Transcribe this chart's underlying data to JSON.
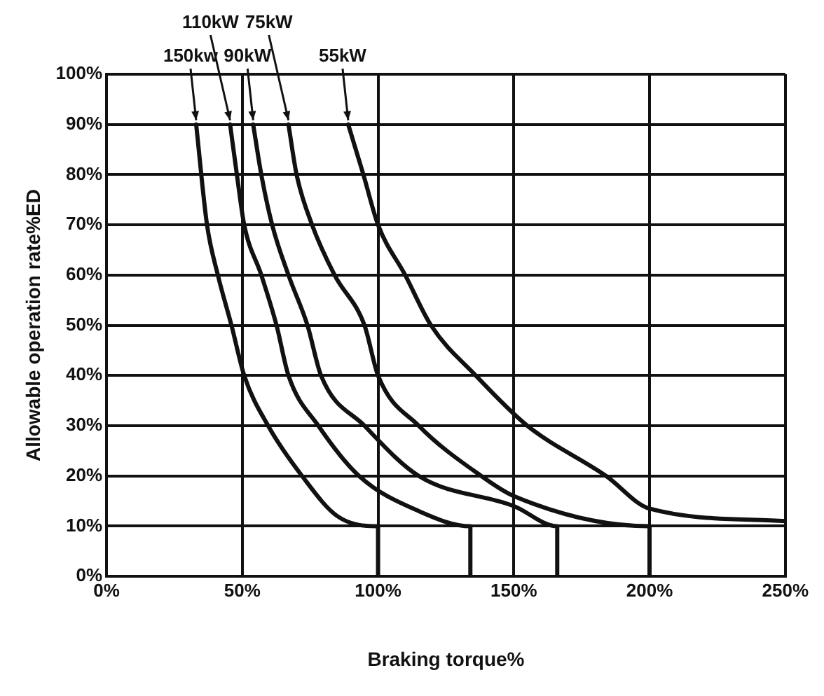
{
  "chart_data": {
    "type": "line",
    "xlabel": "Braking torque%",
    "ylabel": "Allowable operation rate%ED",
    "series": [
      {
        "name": "150kw",
        "color": "#111111",
        "x": [
          33,
          37,
          41,
          46,
          50.7,
          59.5,
          72,
          85,
          100,
          100
        ],
        "values": [
          90,
          70,
          60,
          50,
          40,
          30,
          20,
          12,
          10,
          0
        ]
      },
      {
        "name": "110kW",
        "color": "#111111",
        "x": [
          45.5,
          48,
          50.7,
          57,
          62.6,
          67,
          78,
          93,
          115,
          134,
          134
        ],
        "values": [
          90,
          80,
          70,
          60,
          50,
          40,
          30,
          20,
          13,
          10,
          0
        ]
      },
      {
        "name": "90kW",
        "color": "#111111",
        "x": [
          54,
          57,
          61,
          67,
          74,
          79,
          95,
          115,
          150,
          166,
          166
        ],
        "values": [
          90,
          80,
          70,
          60,
          50,
          40,
          30,
          20,
          14,
          10,
          0
        ]
      },
      {
        "name": "75kW",
        "color": "#111111",
        "x": [
          67,
          70,
          75.7,
          84,
          95,
          100,
          115,
          138,
          150,
          200,
          200
        ],
        "values": [
          90,
          80,
          70,
          60,
          50,
          40,
          30,
          20,
          16,
          10,
          0
        ]
      },
      {
        "name": "55kW",
        "color": "#111111",
        "x": [
          89,
          94.6,
          100,
          110,
          119.5,
          136,
          155,
          184,
          200,
          250
        ],
        "values": [
          90,
          80,
          70,
          60,
          50,
          40,
          30,
          20,
          13.5,
          11
        ]
      }
    ],
    "xlim": [
      0,
      250
    ],
    "xticks": [
      {
        "value": 0,
        "label": "0%"
      },
      {
        "value": 50,
        "label": "50%"
      },
      {
        "value": 100,
        "label": "100%"
      },
      {
        "value": 150,
        "label": "150%"
      },
      {
        "value": 200,
        "label": "200%"
      },
      {
        "value": 250,
        "label": "250%"
      }
    ],
    "ylim": [
      0,
      100
    ],
    "yticks": [
      {
        "value": 0,
        "label": "0%"
      },
      {
        "value": 10,
        "label": "10%"
      },
      {
        "value": 20,
        "label": "20%"
      },
      {
        "value": 30,
        "label": "30%"
      },
      {
        "value": 40,
        "label": "40%"
      },
      {
        "value": 50,
        "label": "50%"
      },
      {
        "value": 60,
        "label": "60%"
      },
      {
        "value": 70,
        "label": "70%"
      },
      {
        "value": 80,
        "label": "80%"
      },
      {
        "value": 90,
        "label": "90%"
      },
      {
        "value": 100,
        "label": "100%"
      }
    ],
    "grid": true,
    "legend": false,
    "marker": "none",
    "line_style": "solid"
  }
}
